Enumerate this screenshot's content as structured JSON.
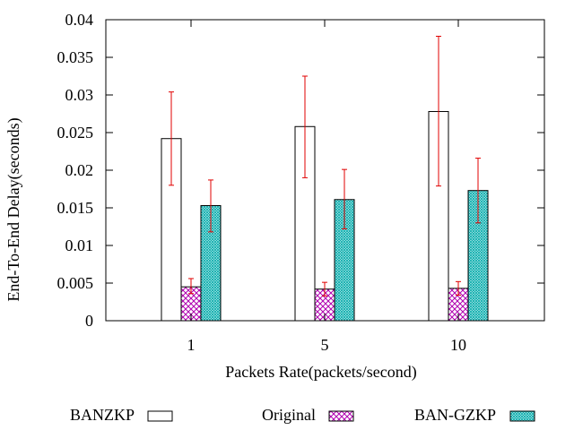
{
  "chart_data": {
    "type": "bar",
    "title": "",
    "xlabel": "Packets Rate(packets/second)",
    "ylabel": "End-To-End Delay(seconds)",
    "categories": [
      "1",
      "5",
      "10"
    ],
    "ylim": [
      0,
      0.04
    ],
    "yticks": [
      0,
      0.005,
      0.01,
      0.015,
      0.02,
      0.025,
      0.03,
      0.035,
      0.04
    ],
    "ytick_labels": [
      "0",
      "0.005",
      "0.01",
      "0.015",
      "0.02",
      "0.025",
      "0.03",
      "0.035",
      "0.04"
    ],
    "grid": false,
    "legend_position": "bottom",
    "series": [
      {
        "name": "BANZKP",
        "values": [
          0.0242,
          0.0258,
          0.0278
        ],
        "error_low": [
          0.018,
          0.019,
          0.0179
        ],
        "error_high": [
          0.0304,
          0.0325,
          0.0378
        ],
        "fill": "white",
        "pattern": "none"
      },
      {
        "name": "Original",
        "values": [
          0.0045,
          0.0042,
          0.0043
        ],
        "error_low": [
          0.0036,
          0.0033,
          0.0034
        ],
        "error_high": [
          0.0056,
          0.0051,
          0.0052
        ],
        "fill": "#b000b0",
        "pattern": "crosshatch"
      },
      {
        "name": "BAN-GZKP",
        "values": [
          0.0153,
          0.0161,
          0.0173
        ],
        "error_low": [
          0.0118,
          0.0122,
          0.013
        ],
        "error_high": [
          0.0187,
          0.0201,
          0.0216
        ],
        "fill": "#00b4b4",
        "pattern": "fine-mesh"
      }
    ],
    "colors": {
      "error_bar": "#e00000",
      "axis": "#000000",
      "bar_outline": "#000000"
    }
  }
}
